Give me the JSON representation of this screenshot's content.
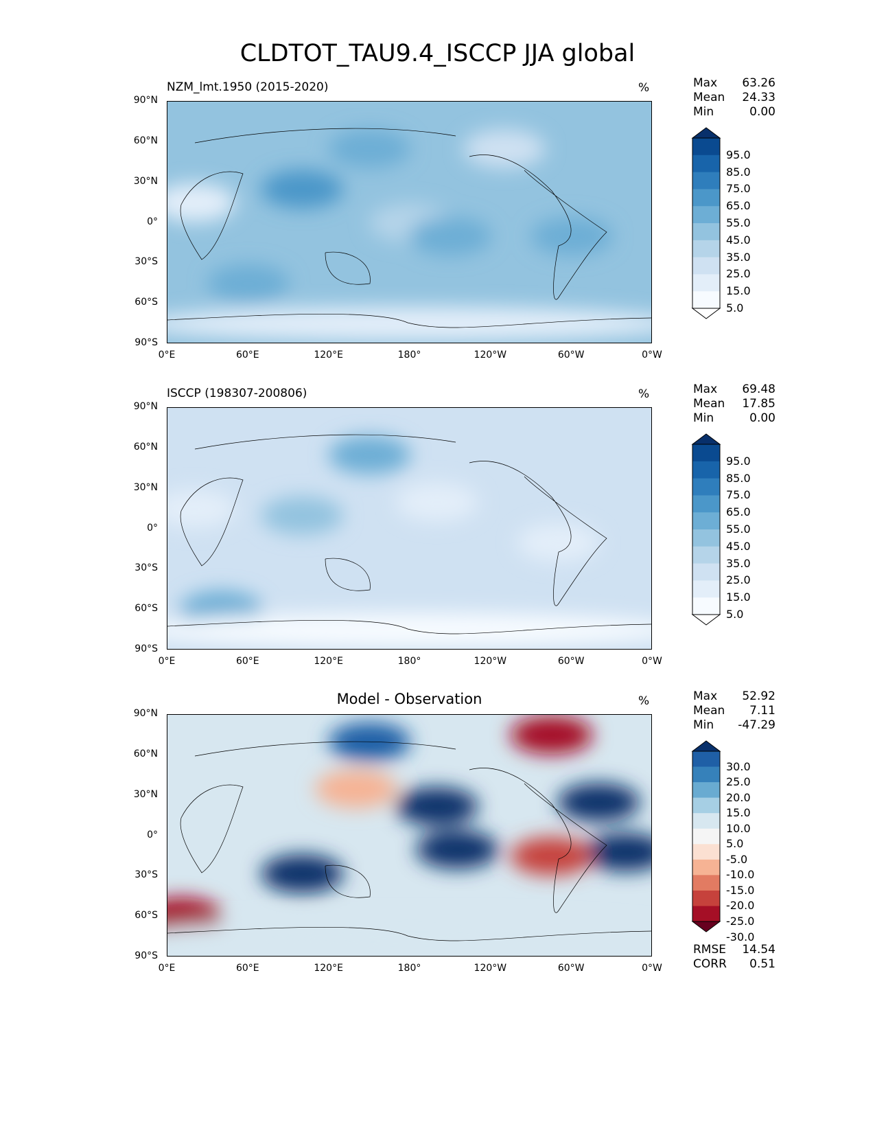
{
  "title": "CLDTOT_TAU9.4_ISCCP JJA global",
  "chart_data": [
    {
      "type": "heatmap",
      "title": "NZM_lmt.1950 (2015-2020)",
      "units": "%",
      "stats": {
        "Max": "63.26",
        "Mean": "24.33",
        "Min": "0.00"
      },
      "yticks": [
        "90°N",
        "60°N",
        "30°N",
        "0°",
        "30°S",
        "60°S",
        "90°S"
      ],
      "xticks": [
        "0°E",
        "60°E",
        "120°E",
        "180°",
        "120°W",
        "60°W",
        "0°W"
      ],
      "colorbar": {
        "ticks": [
          "95.0",
          "85.0",
          "75.0",
          "65.0",
          "55.0",
          "45.0",
          "35.0",
          "25.0",
          "15.0",
          "5.0"
        ],
        "colors": [
          "#ffffff",
          "#f7fbff",
          "#e3eef9",
          "#cfe1f2",
          "#b5d4e9",
          "#93c3df",
          "#6daed5",
          "#4b97c9",
          "#2f7ebc",
          "#1864aa",
          "#0a4a90",
          "#08306b"
        ]
      },
      "blobs": [
        {
          "lon": 180,
          "lat": 0,
          "v": 25
        },
        {
          "lon": 60,
          "lat": -45,
          "v": 45
        },
        {
          "lon": 210,
          "lat": -10,
          "v": 50
        },
        {
          "lon": 300,
          "lat": -10,
          "v": 50
        },
        {
          "lon": 150,
          "lat": 55,
          "v": 50
        },
        {
          "lon": 20,
          "lat": 15,
          "v": 10
        },
        {
          "lon": 100,
          "lat": 25,
          "v": 55
        },
        {
          "lon": 180,
          "lat": -75,
          "v": 5
        },
        {
          "lon": 250,
          "lat": 55,
          "v": 15
        }
      ],
      "base": 35
    },
    {
      "type": "heatmap",
      "title": "ISCCP (198307-200806)",
      "units": "%",
      "stats": {
        "Max": "69.48",
        "Mean": "17.85",
        "Min": "0.00"
      },
      "yticks": [
        "90°N",
        "60°N",
        "30°N",
        "0°",
        "30°S",
        "60°S",
        "90°S"
      ],
      "xticks": [
        "0°E",
        "60°E",
        "120°E",
        "180°",
        "120°W",
        "60°W",
        "0°W"
      ],
      "colorbar": {
        "ticks": [
          "95.0",
          "85.0",
          "75.0",
          "65.0",
          "55.0",
          "45.0",
          "35.0",
          "25.0",
          "15.0",
          "5.0"
        ],
        "colors": [
          "#ffffff",
          "#f7fbff",
          "#e3eef9",
          "#cfe1f2",
          "#b5d4e9",
          "#93c3df",
          "#6daed5",
          "#4b97c9",
          "#2f7ebc",
          "#1864aa",
          "#0a4a90",
          "#08306b"
        ]
      },
      "blobs": [
        {
          "lon": 200,
          "lat": 20,
          "v": 5
        },
        {
          "lon": 20,
          "lat": 15,
          "v": 5
        },
        {
          "lon": 40,
          "lat": -60,
          "v": 50
        },
        {
          "lon": 150,
          "lat": 55,
          "v": 45
        },
        {
          "lon": 180,
          "lat": -75,
          "v": 0
        },
        {
          "lon": 290,
          "lat": -10,
          "v": 5
        },
        {
          "lon": 100,
          "lat": 10,
          "v": 35
        }
      ],
      "base": 22
    },
    {
      "type": "heatmap",
      "title": "Model - Observation",
      "units": "%",
      "stats": {
        "Max": "52.92",
        "Mean": "7.11",
        "Min": "-47.29"
      },
      "extra": {
        "RMSE": "14.54",
        "CORR": "0.51"
      },
      "yticks": [
        "90°N",
        "60°N",
        "30°N",
        "0°",
        "30°S",
        "60°S",
        "90°S"
      ],
      "xticks": [
        "0°E",
        "60°E",
        "120°E",
        "180°",
        "120°W",
        "60°W",
        "0°W"
      ],
      "colorbar": {
        "ticks": [
          "30.0",
          "25.0",
          "20.0",
          "15.0",
          "10.0",
          "5.0",
          "-5.0",
          "-10.0",
          "-15.0",
          "-20.0",
          "-25.0",
          "-30.0"
        ],
        "colors": [
          "#67001f",
          "#a50f26",
          "#c6423c",
          "#e27b62",
          "#f6b394",
          "#fbe0d2",
          "#f5f5f5",
          "#d7e7f0",
          "#a6cfe4",
          "#69abd1",
          "#3681ba",
          "#1f5fa6",
          "#08306b"
        ]
      },
      "blobs": [
        {
          "lon": 215,
          "lat": -10,
          "v": 35
        },
        {
          "lon": 200,
          "lat": 22,
          "v": 30
        },
        {
          "lon": 100,
          "lat": -28,
          "v": 25
        },
        {
          "lon": 320,
          "lat": 25,
          "v": 30
        },
        {
          "lon": 340,
          "lat": -12,
          "v": 35
        },
        {
          "lon": 150,
          "lat": 70,
          "v": 20
        },
        {
          "lon": 285,
          "lat": 75,
          "v": -30
        },
        {
          "lon": 285,
          "lat": -15,
          "v": -25
        },
        {
          "lon": 140,
          "lat": 35,
          "v": -15
        },
        {
          "lon": 10,
          "lat": -60,
          "v": -30
        },
        {
          "lon": 180,
          "lat": -75,
          "v": 0
        }
      ],
      "base": 3
    }
  ]
}
